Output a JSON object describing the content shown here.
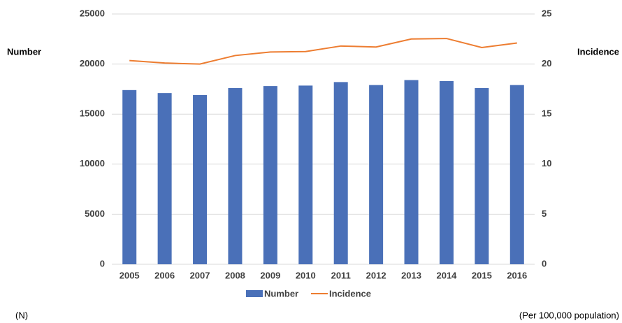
{
  "chart_data": {
    "type": "bar_line",
    "y_axis_label": "Number",
    "y2_axis_label": "Incidence",
    "y_unit_note": "(N)",
    "y2_unit_note": "(Per 100,000 population)",
    "categories": [
      "2005",
      "2006",
      "2007",
      "2008",
      "2009",
      "2010",
      "2011",
      "2012",
      "2013",
      "2014",
      "2015",
      "2016"
    ],
    "series": [
      {
        "name": "Number",
        "type": "bar",
        "color": "#4a70b8",
        "values": [
          17400,
          17100,
          16900,
          17600,
          17800,
          17850,
          18200,
          17900,
          18400,
          18300,
          17600,
          17900
        ]
      },
      {
        "name": "Incidence",
        "type": "line",
        "axis": "y2",
        "color": "#ed7d31",
        "values": [
          20.35,
          20.1,
          20.0,
          20.85,
          21.2,
          21.25,
          21.8,
          21.7,
          22.5,
          22.55,
          21.65,
          22.1
        ]
      }
    ],
    "ylim": [
      0,
      25000
    ],
    "yticks": [
      0,
      5000,
      10000,
      15000,
      20000,
      25000
    ],
    "y2lim": [
      0,
      25
    ],
    "y2ticks": [
      0,
      5,
      10,
      15,
      20,
      25
    ],
    "grid": true,
    "legend": "bottom"
  }
}
